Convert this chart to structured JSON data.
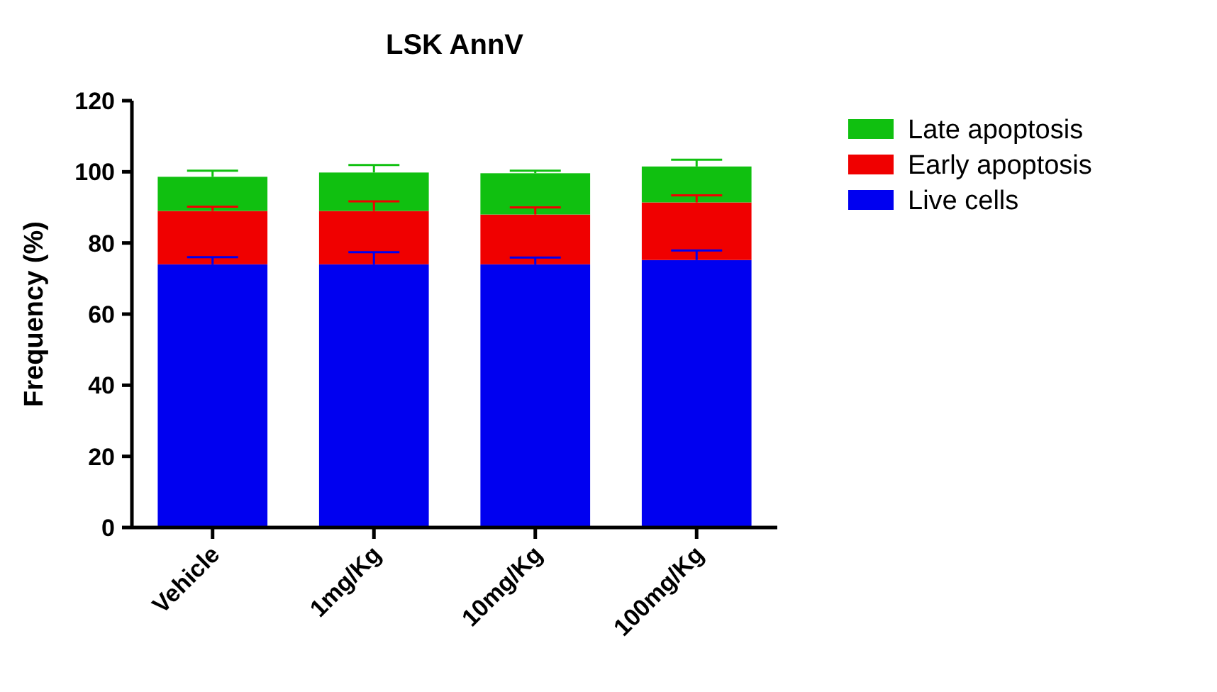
{
  "chart_data": {
    "type": "bar",
    "title": "LSK AnnV",
    "ylabel": "Frequency (%)",
    "categories": [
      "Vehicle",
      "1mg/Kg",
      "10mg/Kg",
      "100mg/Kg"
    ],
    "stacked": true,
    "legend": "right",
    "ylim": [
      0,
      120
    ],
    "yticks": [
      0,
      20,
      40,
      60,
      80,
      100,
      120
    ],
    "grid": false,
    "series": [
      {
        "name": "Live cells",
        "color": "#0000f0",
        "values": [
          74,
          74,
          74,
          75.2
        ],
        "errors": [
          [
            74,
            76
          ],
          [
            74,
            77.4
          ],
          [
            74,
            75.9
          ],
          [
            75.2,
            77.9
          ]
        ]
      },
      {
        "name": "Early apoptosis",
        "color": "#f00000",
        "values": [
          15,
          15,
          14,
          16.2
        ],
        "errors": [
          [
            89,
            90.2
          ],
          [
            89,
            91.7
          ],
          [
            88,
            90
          ],
          [
            91.4,
            93.4
          ]
        ]
      },
      {
        "name": "Late apoptosis",
        "color": "#10c010",
        "values": [
          9.6,
          10.8,
          11.6,
          10.1
        ],
        "errors": [
          [
            98.6,
            100.3
          ],
          [
            99.8,
            101.9
          ],
          [
            99.6,
            100.3
          ],
          [
            101.5,
            103.4
          ]
        ]
      }
    ]
  }
}
